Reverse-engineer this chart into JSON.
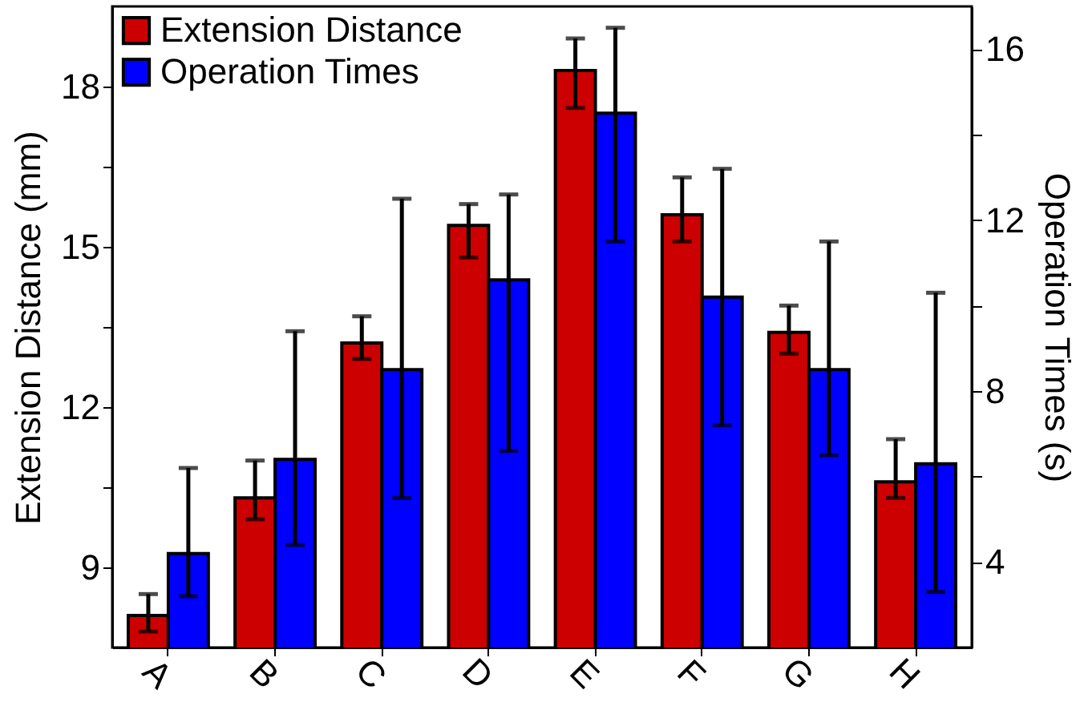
{
  "chart_data": {
    "type": "bar",
    "categories": [
      "A",
      "B",
      "C",
      "D",
      "E",
      "F",
      "G",
      "H"
    ],
    "series": [
      {
        "name": "Extension Distance",
        "color": "#cc0000",
        "values": [
          8.1,
          10.3,
          13.2,
          15.4,
          18.3,
          15.6,
          13.4,
          10.6
        ],
        "errors": [
          [
            7.8,
            8.5
          ],
          [
            9.9,
            11.0
          ],
          [
            12.9,
            13.7
          ],
          [
            14.8,
            15.8
          ],
          [
            17.6,
            18.9
          ],
          [
            15.1,
            16.3
          ],
          [
            13.0,
            13.9
          ],
          [
            10.3,
            11.4
          ]
        ]
      },
      {
        "name": "Operation Times",
        "color": "#0000ff",
        "axis": "y2",
        "values": [
          4.2,
          6.4,
          8.5,
          10.6,
          14.5,
          10.2,
          8.5,
          6.3
        ],
        "errors": [
          [
            3.2,
            6.2
          ],
          [
            4.4,
            9.4
          ],
          [
            5.5,
            12.5
          ],
          [
            6.6,
            12.6
          ],
          [
            11.5,
            16.5
          ],
          [
            7.2,
            13.2
          ],
          [
            6.5,
            11.5
          ],
          [
            3.3,
            10.3
          ]
        ]
      }
    ],
    "ylabel": "Extension Distance (mm)",
    "y2label": "Operation Times (s)",
    "ylim": [
      7.5,
      19.5
    ],
    "yticks": [
      9,
      {
        "value": 10.5,
        "label": null
      },
      12,
      {
        "value": 13.5,
        "label": null
      },
      15,
      {
        "value": 16.5,
        "label": null
      },
      18
    ],
    "y2lim": [
      2,
      17
    ],
    "y2ticks": [
      4,
      {
        "value": 6,
        "label": null
      },
      8,
      {
        "value": 10,
        "label": null
      },
      12,
      {
        "value": 14,
        "label": null
      },
      16
    ],
    "legend": "top left"
  }
}
